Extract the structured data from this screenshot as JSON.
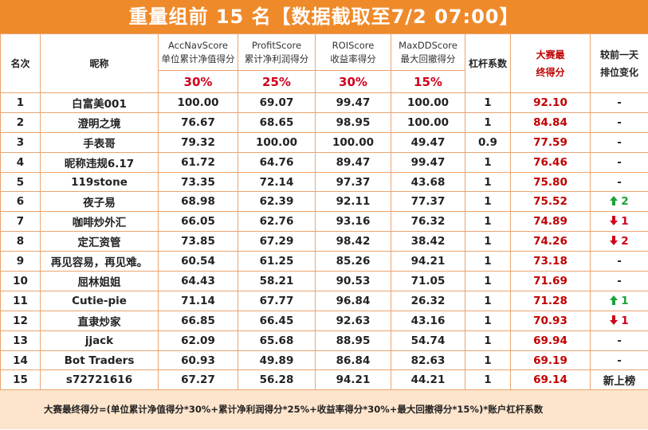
{
  "title": "重量组前 15 名【数据截取至7/2 07:00】",
  "columns": [
    {
      "lines": [
        "名次"
      ]
    },
    {
      "lines": [
        "昵称"
      ]
    },
    {
      "lines": [
        "AccNavScore",
        "单位累计净值得分"
      ],
      "weight": "30%"
    },
    {
      "lines": [
        "ProfitScore",
        "累计净利润得分"
      ],
      "weight": "25%"
    },
    {
      "lines": [
        "ROIScore",
        "收益率得分"
      ],
      "weight": "30%"
    },
    {
      "lines": [
        "MaxDDScore",
        "最大回撤得分"
      ],
      "weight": "15%"
    },
    {
      "lines": [
        "杠杆系数"
      ]
    },
    {
      "lines": [
        "大赛最",
        "终得分"
      ],
      "highlight": true
    },
    {
      "lines": [
        "较前一天",
        "排位变化"
      ]
    }
  ],
  "rows": [
    [
      "1",
      "白富美001",
      "100.00",
      "69.07",
      "99.47",
      "100.00",
      "1",
      "92.10",
      {
        "text": "-"
      }
    ],
    [
      "2",
      "澄明之境",
      "76.67",
      "68.65",
      "98.95",
      "100.00",
      "1",
      "84.84",
      {
        "text": "-"
      }
    ],
    [
      "3",
      "手表哥",
      "79.32",
      "100.00",
      "100.00",
      "49.47",
      "0.9",
      "77.59",
      {
        "text": "-"
      }
    ],
    [
      "4",
      "昵称违规6.17",
      "61.72",
      "64.76",
      "89.47",
      "99.47",
      "1",
      "76.46",
      {
        "text": "-"
      }
    ],
    [
      "5",
      "119stone",
      "73.35",
      "72.14",
      "97.37",
      "43.68",
      "1",
      "75.80",
      {
        "text": "-"
      }
    ],
    [
      "6",
      "夜子易",
      "68.98",
      "62.39",
      "92.11",
      "77.37",
      "1",
      "75.52",
      {
        "text": "2",
        "trend": "up"
      }
    ],
    [
      "7",
      "咖啡炒外汇",
      "66.05",
      "62.76",
      "93.16",
      "76.32",
      "1",
      "74.89",
      {
        "text": "1",
        "trend": "down"
      }
    ],
    [
      "8",
      "定汇资管",
      "73.85",
      "67.29",
      "98.42",
      "38.42",
      "1",
      "74.26",
      {
        "text": "2",
        "trend": "down"
      }
    ],
    [
      "9",
      "再见容易，再见难。",
      "60.54",
      "61.25",
      "85.26",
      "94.21",
      "1",
      "73.18",
      {
        "text": "-"
      }
    ],
    [
      "10",
      "屈林姐姐",
      "64.43",
      "58.21",
      "90.53",
      "71.05",
      "1",
      "71.69",
      {
        "text": "-"
      }
    ],
    [
      "11",
      "Cutie-pie",
      "71.14",
      "67.77",
      "96.84",
      "26.32",
      "1",
      "71.28",
      {
        "text": "1",
        "trend": "up"
      }
    ],
    [
      "12",
      "直隶炒家",
      "66.85",
      "66.45",
      "92.63",
      "43.16",
      "1",
      "70.93",
      {
        "text": "1",
        "trend": "down"
      }
    ],
    [
      "13",
      "jjack",
      "62.09",
      "65.68",
      "88.95",
      "54.74",
      "1",
      "69.94",
      {
        "text": "-"
      }
    ],
    [
      "14",
      "Bot Traders",
      "60.93",
      "49.89",
      "86.84",
      "82.63",
      "1",
      "69.19",
      {
        "text": "-"
      }
    ],
    [
      "15",
      "s72721616",
      "67.27",
      "56.28",
      "94.21",
      "44.21",
      "1",
      "69.14",
      {
        "text": "新上榜"
      }
    ]
  ],
  "footer": "大赛最终得分=(单位累计净值得分*30%+累计净利润得分*25%+收益率得分*30%+最大回撤得分*15%)*账户杠杆系数"
}
